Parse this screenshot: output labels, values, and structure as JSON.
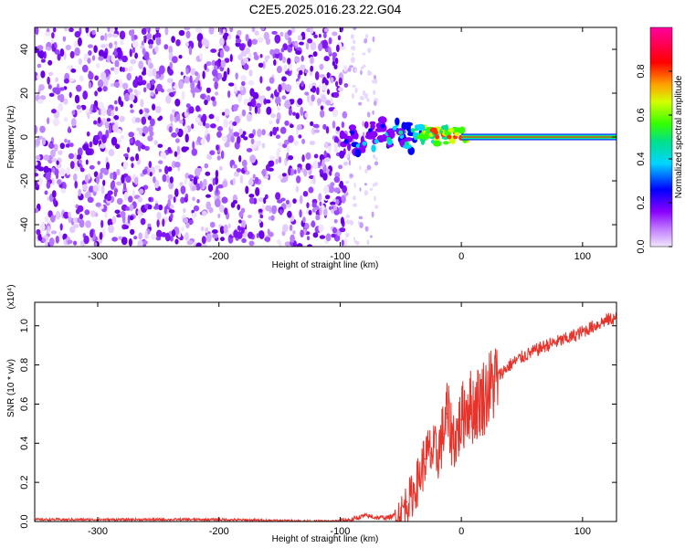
{
  "title": "C2E5.2025.016.23.22.G04",
  "colors": {
    "snr_line": "#e8332b",
    "speckle": "#6a1ae0",
    "ridge_hot": "#e4007c",
    "ridge_mid": "#00c0a0",
    "axes": "#000000"
  },
  "chart_data": [
    {
      "type": "heatmap",
      "xlabel": "Height of straight line (km)",
      "ylabel": "Frequency (Hz)",
      "xlim": [
        -352,
        128
      ],
      "ylim": [
        -50,
        50
      ],
      "xticks": [
        -300,
        -200,
        -100,
        0,
        100
      ],
      "xtick_labels": [
        "-300",
        "-200",
        "-100",
        "0",
        "100"
      ],
      "yticks": [
        -40,
        -20,
        0,
        20,
        40
      ],
      "ytick_labels": [
        "-40",
        "-20",
        "0",
        "20",
        "40"
      ],
      "description_regions": {
        "noise_band_x": [
          -352,
          -95
        ],
        "sparse_column_x": [
          -95,
          -70
        ],
        "ridge_frequency_hz": 0
      },
      "ridge_points": [
        {
          "x": -95,
          "y": -2,
          "v": 0.3
        },
        {
          "x": -90,
          "y": 2,
          "v": 0.35
        },
        {
          "x": -85,
          "y": -4,
          "v": 0.4
        },
        {
          "x": -80,
          "y": -3,
          "v": 0.42
        },
        {
          "x": -75,
          "y": 3,
          "v": 0.35
        },
        {
          "x": -70,
          "y": -2,
          "v": 0.45
        },
        {
          "x": -65,
          "y": 5,
          "v": 0.38
        },
        {
          "x": -60,
          "y": -1,
          "v": 0.5
        },
        {
          "x": -55,
          "y": 4,
          "v": 0.45
        },
        {
          "x": -50,
          "y": 2,
          "v": 0.55
        },
        {
          "x": -45,
          "y": -3,
          "v": 0.5
        },
        {
          "x": -40,
          "y": 3,
          "v": 0.55
        },
        {
          "x": -35,
          "y": 0,
          "v": 0.6
        },
        {
          "x": -30,
          "y": 2,
          "v": 0.75
        },
        {
          "x": -25,
          "y": 1,
          "v": 0.7
        },
        {
          "x": -20,
          "y": 0,
          "v": 0.85
        },
        {
          "x": -15,
          "y": 1,
          "v": 0.8
        },
        {
          "x": -10,
          "y": 0,
          "v": 0.9
        },
        {
          "x": -5,
          "y": 0,
          "v": 0.85
        },
        {
          "x": 0,
          "y": 0,
          "v": 0.9
        }
      ],
      "ridge_band": {
        "x": [
          0,
          128
        ],
        "y": 0,
        "v": 0.95
      }
    },
    {
      "type": "colorbar",
      "label": "Normalized spectral amplitude",
      "range": [
        0,
        1
      ],
      "ticks": [
        0.0,
        0.2,
        0.4,
        0.6,
        0.8
      ],
      "tick_labels": [
        "0.0",
        "0.2",
        "0.4",
        "0.6",
        "0.8"
      ]
    },
    {
      "type": "line",
      "xlabel": "Height of straight line (km)",
      "ylabel": "SNR (10 * v/v)",
      "scale_label": "(x10⁴)",
      "xlim": [
        -352,
        128
      ],
      "ylim": [
        0,
        1.12
      ],
      "xticks": [
        -300,
        -200,
        -100,
        0,
        100
      ],
      "xtick_labels": [
        "-300",
        "-200",
        "-100",
        "0",
        "100"
      ],
      "yticks": [
        0.0,
        0.2,
        0.4,
        0.6,
        0.8,
        1.0
      ],
      "ytick_labels": [
        "0.0",
        "0.2",
        "0.4",
        "0.6",
        "0.8",
        "1.0"
      ],
      "series": [
        {
          "x": [
            -352,
            -300,
            -250,
            -200,
            -150,
            -110,
            -100,
            -90,
            -80,
            -70,
            -60,
            -50,
            -45,
            -40,
            -35,
            -30,
            -25,
            -20,
            -15,
            -12,
            -8,
            -5,
            0,
            5,
            10,
            15,
            20,
            30,
            40,
            50,
            60,
            70,
            80,
            90,
            100,
            110,
            120,
            128
          ],
          "y": [
            0.01,
            0.01,
            0.01,
            0.01,
            0.005,
            0.0,
            0.005,
            0.01,
            0.03,
            0.02,
            0.02,
            0.04,
            0.1,
            0.14,
            0.22,
            0.32,
            0.35,
            0.34,
            0.45,
            0.55,
            0.45,
            0.42,
            0.52,
            0.6,
            0.58,
            0.62,
            0.65,
            0.74,
            0.8,
            0.84,
            0.87,
            0.9,
            0.92,
            0.94,
            0.97,
            1.0,
            1.03,
            1.04
          ]
        }
      ]
    }
  ]
}
